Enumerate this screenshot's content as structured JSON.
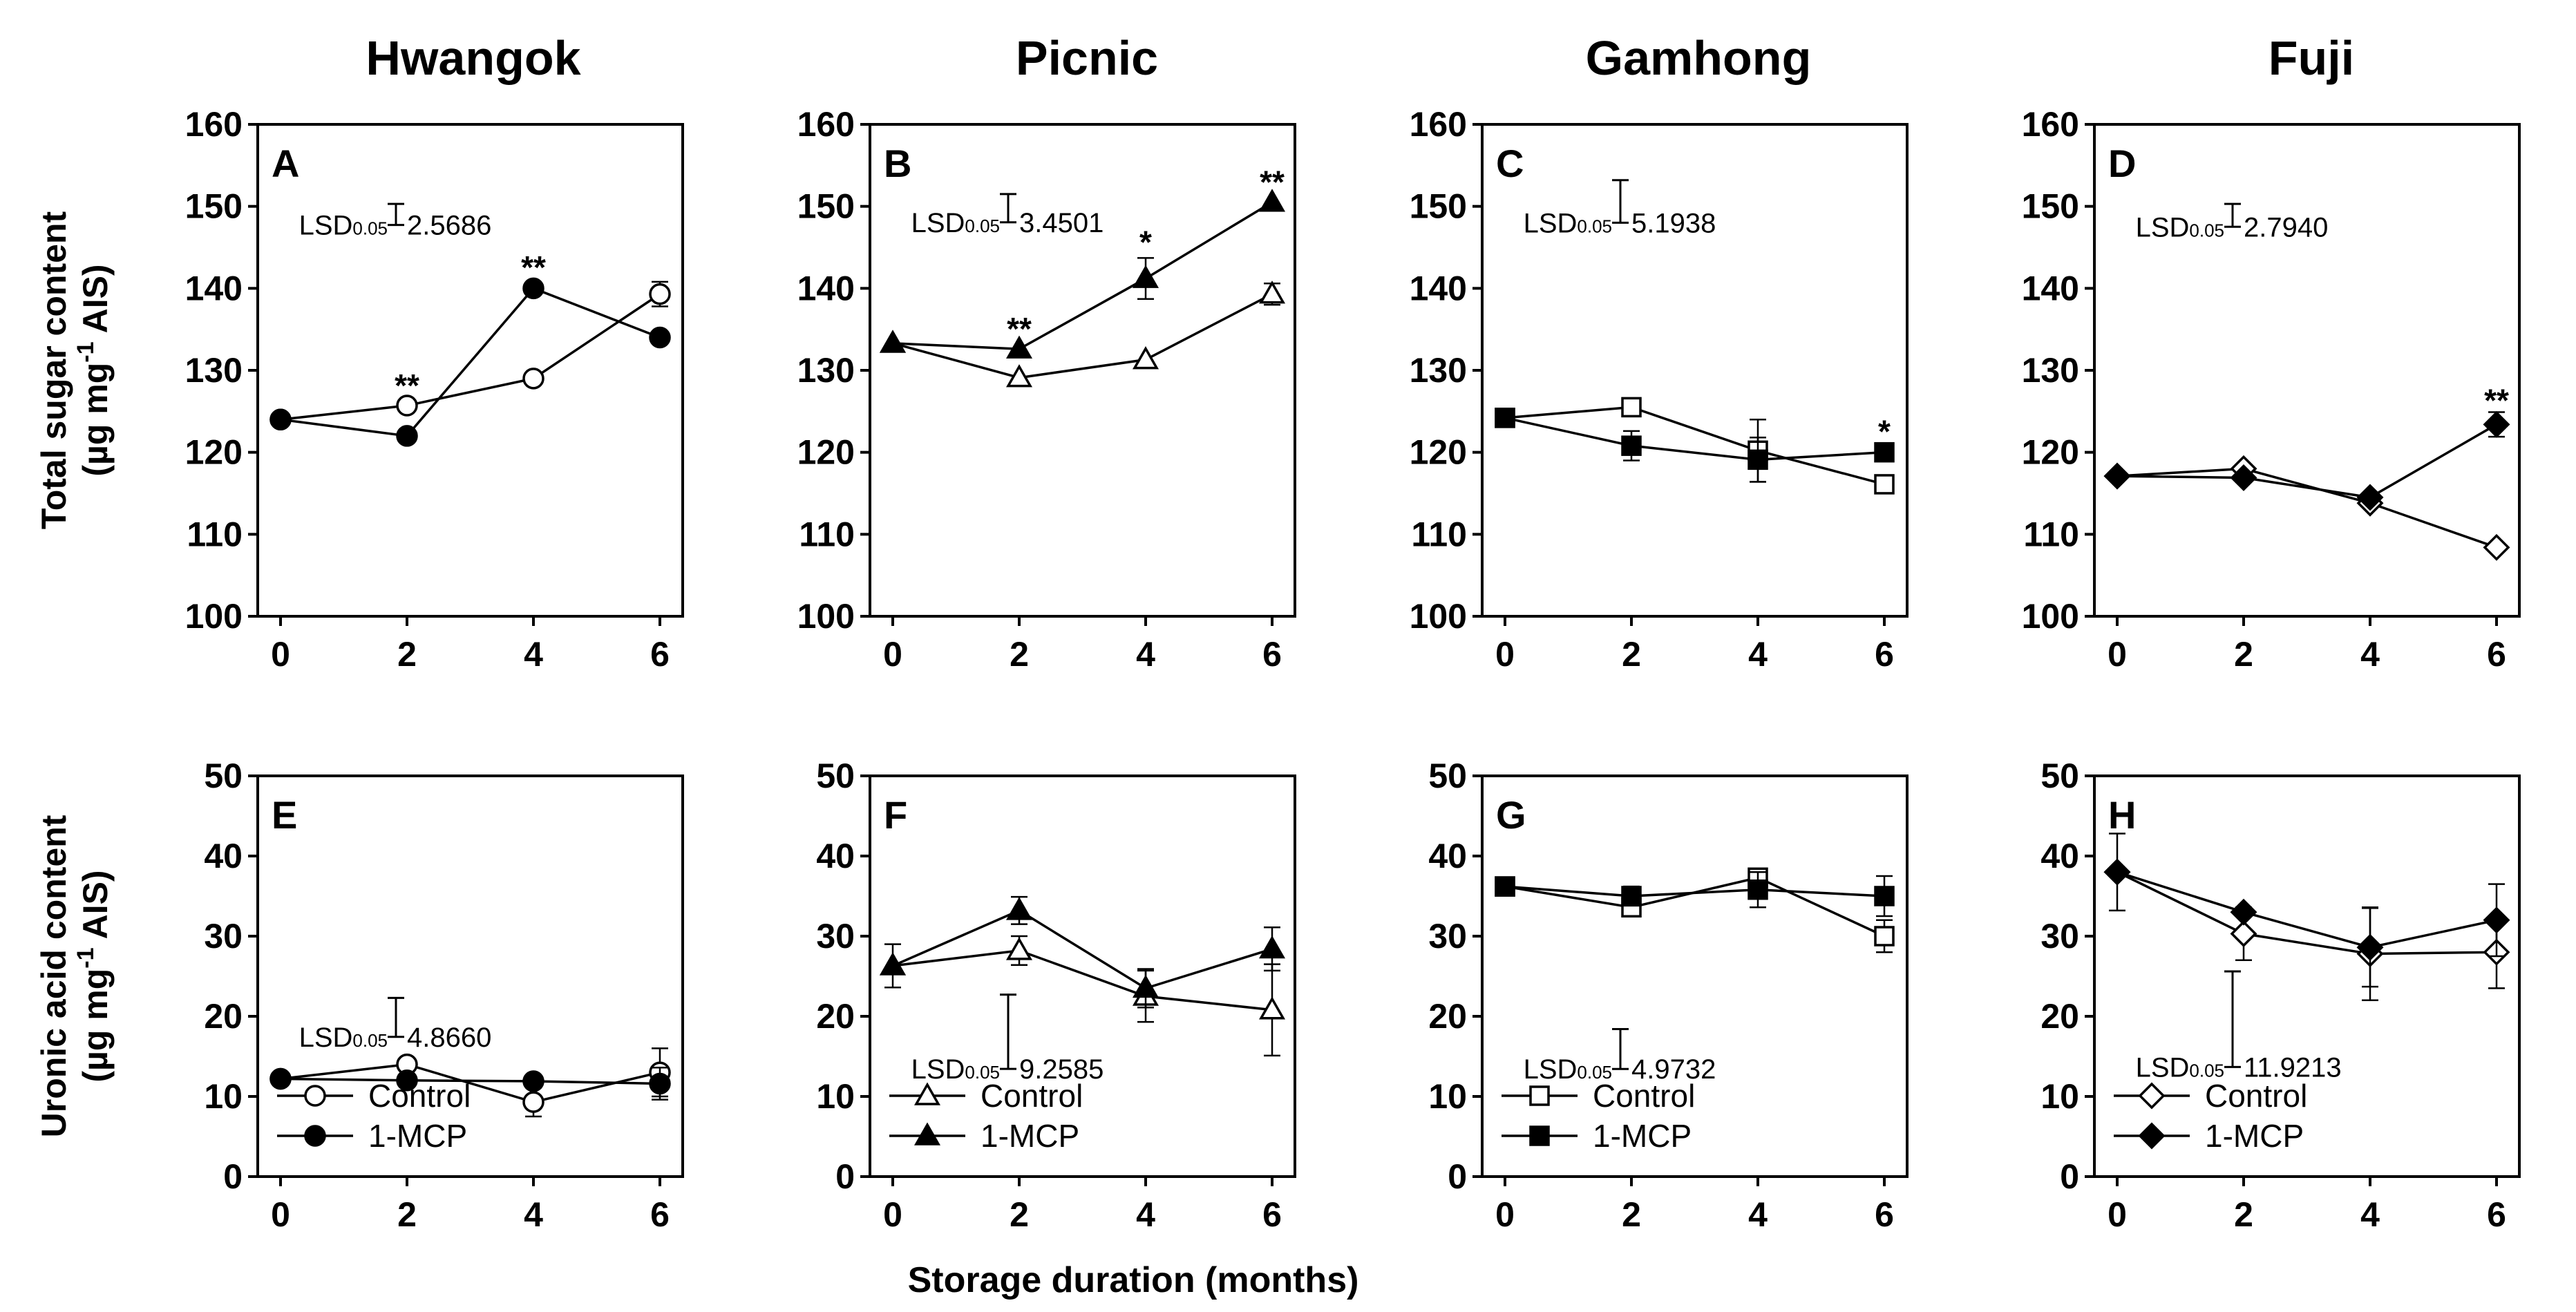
{
  "figure": {
    "x_axis_label": "Storage duration (months)",
    "columns": [
      "Hwangok",
      "Picnic",
      "Gamhong",
      "Fuji"
    ],
    "row_labels": {
      "top": [
        "Total sugar content",
        "(µg mg",
        "-1",
        " AIS)"
      ],
      "bottom": [
        "Uronic acid content",
        "(µg mg",
        "-1",
        " AIS)"
      ]
    },
    "lsd_prefix": "LSD",
    "lsd_subscript": "0.05",
    "legend": [
      "Control",
      "1-MCP"
    ]
  },
  "chart_data": [
    {
      "type": "line",
      "panel": "A",
      "cultivar": "Hwangok",
      "marker": "circle",
      "x": [
        0,
        2,
        4,
        6
      ],
      "xlim": [
        0,
        6
      ],
      "ylim": [
        100,
        160
      ],
      "yticks": [
        100,
        110,
        120,
        130,
        140,
        150,
        160
      ],
      "xticks": [
        0,
        2,
        4,
        6
      ],
      "series": [
        {
          "name": "Control",
          "values": [
            124,
            125.7,
            129,
            139.3
          ],
          "err": [
            0,
            0,
            0,
            1.5
          ]
        },
        {
          "name": "1-MCP",
          "values": [
            124,
            122,
            140,
            134
          ],
          "err": [
            0,
            0,
            0,
            0
          ]
        }
      ],
      "lsd": {
        "value": "2.5686",
        "size": 2.5686,
        "top": 150.3
      },
      "significance": [
        {
          "x": 2,
          "y": 126.8,
          "label": "**"
        },
        {
          "x": 4,
          "y": 141.2,
          "label": "**"
        }
      ],
      "legend": false
    },
    {
      "type": "line",
      "panel": "B",
      "cultivar": "Picnic",
      "marker": "triangle",
      "x": [
        0,
        2,
        4,
        6
      ],
      "xlim": [
        0,
        6
      ],
      "ylim": [
        100,
        160
      ],
      "yticks": [
        100,
        110,
        120,
        130,
        140,
        150,
        160
      ],
      "xticks": [
        0,
        2,
        4,
        6
      ],
      "series": [
        {
          "name": "Control",
          "values": [
            133.3,
            129.1,
            131.3,
            139.3
          ],
          "err": [
            0,
            0,
            0,
            1.3
          ]
        },
        {
          "name": "1-MCP",
          "values": [
            133.3,
            132.6,
            141.2,
            150.5
          ],
          "err": [
            0,
            0,
            2.5,
            0
          ]
        }
      ],
      "lsd": {
        "value": "3.4501",
        "size": 3.4501,
        "top": 151.5
      },
      "significance": [
        {
          "x": 2,
          "y": 133.7,
          "label": "**"
        },
        {
          "x": 4,
          "y": 144.3,
          "label": "*"
        },
        {
          "x": 6,
          "y": 151.6,
          "label": "**"
        }
      ],
      "legend": false
    },
    {
      "type": "line",
      "panel": "C",
      "cultivar": "Gamhong",
      "marker": "square",
      "x": [
        0,
        2,
        4,
        6
      ],
      "xlim": [
        0,
        6
      ],
      "ylim": [
        100,
        160
      ],
      "yticks": [
        100,
        110,
        120,
        130,
        140,
        150,
        160
      ],
      "xticks": [
        0,
        2,
        4,
        6
      ],
      "series": [
        {
          "name": "Control",
          "values": [
            124.2,
            125.5,
            120.2,
            116.1
          ],
          "err": [
            0,
            0,
            3.8,
            0
          ]
        },
        {
          "name": "1-MCP",
          "values": [
            124.2,
            120.8,
            119.1,
            120
          ],
          "err": [
            0,
            1.8,
            2.7,
            0
          ]
        }
      ],
      "lsd": {
        "value": "5.1938",
        "size": 5.1938,
        "top": 153.2
      },
      "significance": [
        {
          "x": 6,
          "y": 121.2,
          "label": "*"
        }
      ],
      "legend": false
    },
    {
      "type": "line",
      "panel": "D",
      "cultivar": "Fuji",
      "marker": "diamond",
      "x": [
        0,
        2,
        4,
        6
      ],
      "xlim": [
        0,
        6
      ],
      "ylim": [
        100,
        160
      ],
      "yticks": [
        100,
        110,
        120,
        130,
        140,
        150,
        160
      ],
      "xticks": [
        0,
        2,
        4,
        6
      ],
      "series": [
        {
          "name": "Control",
          "values": [
            117.1,
            118,
            113.8,
            108.4
          ],
          "err": [
            0,
            0,
            0,
            0
          ]
        },
        {
          "name": "1-MCP",
          "values": [
            117.1,
            116.9,
            114.5,
            123.4
          ],
          "err": [
            0,
            0,
            0,
            1.5
          ]
        }
      ],
      "lsd": {
        "value": "2.7940",
        "size": 2.794,
        "top": 150.3
      },
      "significance": [
        {
          "x": 6,
          "y": 125,
          "label": "**"
        }
      ],
      "legend": false
    },
    {
      "type": "line",
      "panel": "E",
      "cultivar": "Hwangok",
      "marker": "circle",
      "x": [
        0,
        2,
        4,
        6
      ],
      "xlim": [
        0,
        6
      ],
      "ylim": [
        0,
        50
      ],
      "yticks": [
        0,
        10,
        20,
        30,
        40,
        50
      ],
      "xticks": [
        0,
        2,
        4,
        6
      ],
      "series": [
        {
          "name": "Control",
          "values": [
            12.2,
            14,
            9.3,
            13
          ],
          "err": [
            0,
            0,
            1.8,
            3
          ]
        },
        {
          "name": "1-MCP",
          "values": [
            12.2,
            12,
            11.9,
            11.6
          ],
          "err": [
            0,
            0,
            0,
            2
          ]
        }
      ],
      "lsd": {
        "value": "4.8660",
        "size": 4.866,
        "top": 22.3
      },
      "significance": [],
      "legend": true
    },
    {
      "type": "line",
      "panel": "F",
      "cultivar": "Picnic",
      "marker": "triangle",
      "x": [
        0,
        2,
        4,
        6
      ],
      "xlim": [
        0,
        6
      ],
      "ylim": [
        0,
        50
      ],
      "yticks": [
        0,
        10,
        20,
        30,
        40,
        50
      ],
      "xticks": [
        0,
        2,
        4,
        6
      ],
      "series": [
        {
          "name": "Control",
          "values": [
            26.3,
            28.2,
            22.5,
            20.8
          ],
          "err": [
            0,
            1.8,
            3.2,
            5.7
          ]
        },
        {
          "name": "1-MCP",
          "values": [
            26.3,
            33.2,
            23.5,
            28.4
          ],
          "err": [
            2.7,
            1.7,
            2.4,
            2.7
          ]
        }
      ],
      "lsd": {
        "value": "9.2585",
        "size": 9.2585,
        "top": 22.7
      },
      "significance": [],
      "legend": true
    },
    {
      "type": "line",
      "panel": "G",
      "cultivar": "Gamhong",
      "marker": "square",
      "x": [
        0,
        2,
        4,
        6
      ],
      "xlim": [
        0,
        6
      ],
      "ylim": [
        0,
        50
      ],
      "yticks": [
        0,
        10,
        20,
        30,
        40,
        50
      ],
      "xticks": [
        0,
        2,
        4,
        6
      ],
      "series": [
        {
          "name": "Control",
          "values": [
            36.2,
            33.6,
            37.3,
            30
          ],
          "err": [
            0,
            0,
            0,
            2
          ]
        },
        {
          "name": "1-MCP",
          "values": [
            36.2,
            35,
            35.8,
            35
          ],
          "err": [
            0,
            1.2,
            2.2,
            2.5
          ]
        }
      ],
      "lsd": {
        "value": "4.9732",
        "size": 4.9732,
        "top": 18.4
      },
      "significance": [],
      "legend": true
    },
    {
      "type": "line",
      "panel": "H",
      "cultivar": "Fuji",
      "marker": "diamond",
      "x": [
        0,
        2,
        4,
        6
      ],
      "xlim": [
        0,
        6
      ],
      "ylim": [
        0,
        50
      ],
      "yticks": [
        0,
        10,
        20,
        30,
        40,
        50
      ],
      "xticks": [
        0,
        2,
        4,
        6
      ],
      "series": [
        {
          "name": "Control",
          "values": [
            38,
            30.3,
            27.8,
            28
          ],
          "err": [
            4.8,
            3.3,
            5.8,
            4.5
          ]
        },
        {
          "name": "1-MCP",
          "values": [
            38,
            33,
            28.6,
            32
          ],
          "err": [
            0,
            0,
            4.9,
            4.5
          ]
        }
      ],
      "lsd": {
        "value": "11.9213",
        "size": 11.9213,
        "top": 25.6
      },
      "significance": [],
      "legend": true
    }
  ]
}
